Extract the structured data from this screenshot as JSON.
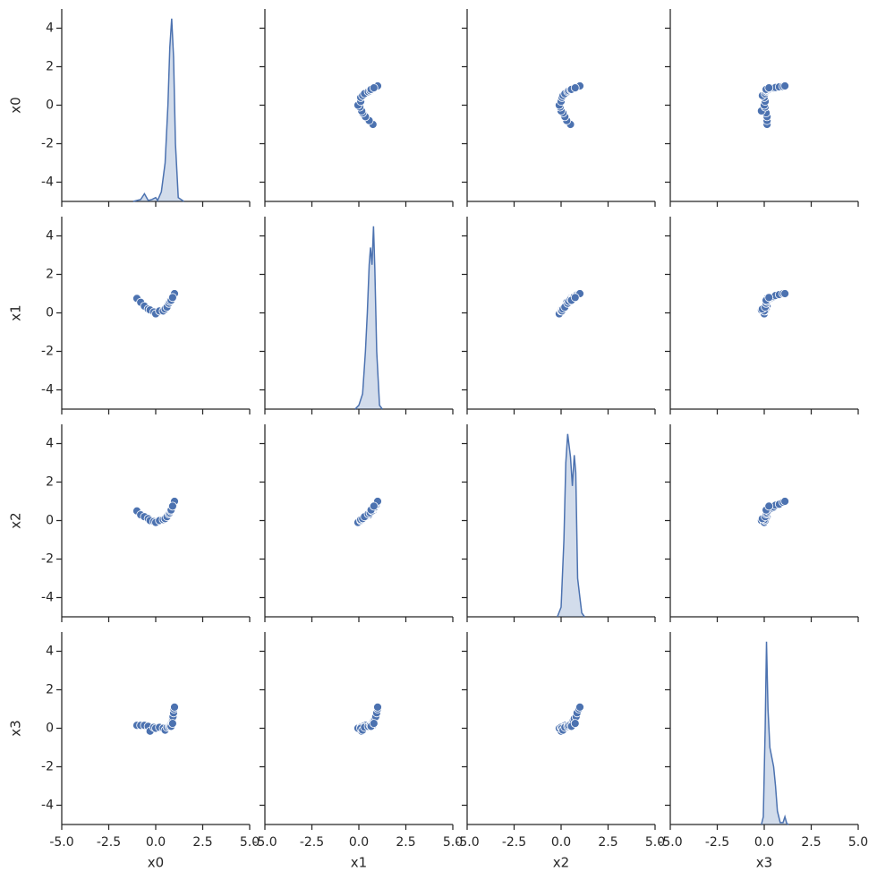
{
  "chart_data": {
    "type": "pairplot",
    "variables": [
      "x0",
      "x1",
      "x2",
      "x3"
    ],
    "color": "#4c72b0",
    "xlim": [
      -5,
      5
    ],
    "ylim": [
      -5,
      5
    ],
    "xticks": [
      {
        "value": -5,
        "label": "-5.0"
      },
      {
        "value": -2.5,
        "label": "-2.5"
      },
      {
        "value": 0,
        "label": "0.0"
      },
      {
        "value": 2.5,
        "label": "2.5"
      },
      {
        "value": 5,
        "label": "5.0"
      }
    ],
    "yticks": [
      -4,
      -2,
      0,
      2,
      4
    ],
    "points": {
      "x0": [
        -1.0,
        -0.8,
        -0.6,
        -0.4,
        -0.3,
        -0.1,
        0.0,
        0.2,
        0.4,
        0.5,
        0.6,
        0.7,
        0.75,
        0.8,
        0.85,
        0.88,
        0.9,
        0.92,
        0.95,
        0.97,
        1.0,
        0.82,
        0.9
      ],
      "x1": [
        0.75,
        0.55,
        0.35,
        0.2,
        0.15,
        0.05,
        -0.05,
        0.1,
        0.1,
        0.2,
        0.3,
        0.5,
        0.6,
        0.7,
        0.75,
        0.8,
        0.85,
        0.9,
        0.95,
        1.0,
        1.0,
        0.65,
        0.8
      ],
      "x2": [
        0.5,
        0.3,
        0.2,
        0.1,
        0.0,
        -0.05,
        -0.1,
        0.0,
        0.05,
        0.1,
        0.2,
        0.35,
        0.4,
        0.5,
        0.6,
        0.65,
        0.7,
        0.8,
        0.85,
        0.95,
        1.0,
        0.55,
        0.75
      ],
      "x3": [
        0.15,
        0.15,
        0.15,
        0.1,
        -0.15,
        0.05,
        0.0,
        0.05,
        0.0,
        -0.1,
        0.05,
        0.1,
        0.15,
        0.2,
        0.3,
        0.4,
        0.5,
        0.6,
        0.8,
        1.0,
        1.1,
        0.1,
        0.25
      ]
    },
    "diagonal": [
      {
        "type": "kde",
        "x": [
          -1.2,
          -0.8,
          -0.6,
          -0.4,
          -0.2,
          0,
          0.1,
          0.3,
          0.5,
          0.65,
          0.75,
          0.85,
          0.95,
          1.05,
          1.2,
          1.5
        ],
        "y": [
          -5,
          -4.9,
          -4.6,
          -4.95,
          -4.9,
          -4.8,
          -4.95,
          -4.5,
          -3,
          0,
          3,
          4.5,
          2.5,
          -2,
          -4.8,
          -5
        ]
      },
      {
        "type": "kde",
        "x": [
          -0.2,
          0,
          0.2,
          0.35,
          0.45,
          0.55,
          0.62,
          0.7,
          0.78,
          0.85,
          0.95,
          1.1,
          1.25
        ],
        "y": [
          -5,
          -4.8,
          -4.2,
          -2,
          0,
          2.5,
          3.4,
          2.5,
          4.5,
          2.3,
          -2,
          -4.8,
          -5
        ]
      },
      {
        "type": "kde",
        "x": [
          -0.2,
          0,
          0.15,
          0.25,
          0.35,
          0.5,
          0.6,
          0.7,
          0.78,
          0.88,
          1.0,
          1.1,
          1.25
        ],
        "y": [
          -5,
          -4.5,
          -1,
          3,
          4.5,
          3.3,
          1.8,
          3.4,
          2.5,
          -3,
          -4,
          -4.8,
          -5
        ]
      },
      {
        "type": "kde",
        "x": [
          -0.15,
          -0.05,
          0.05,
          0.12,
          0.2,
          0.3,
          0.5,
          0.6,
          0.7,
          0.85,
          1.0,
          1.1,
          1.2,
          1.3
        ],
        "y": [
          -5,
          -4.6,
          0,
          4.5,
          1,
          -1,
          -2,
          -3,
          -4.3,
          -4.9,
          -4.9,
          -4.6,
          -4.95,
          -5
        ]
      }
    ]
  }
}
